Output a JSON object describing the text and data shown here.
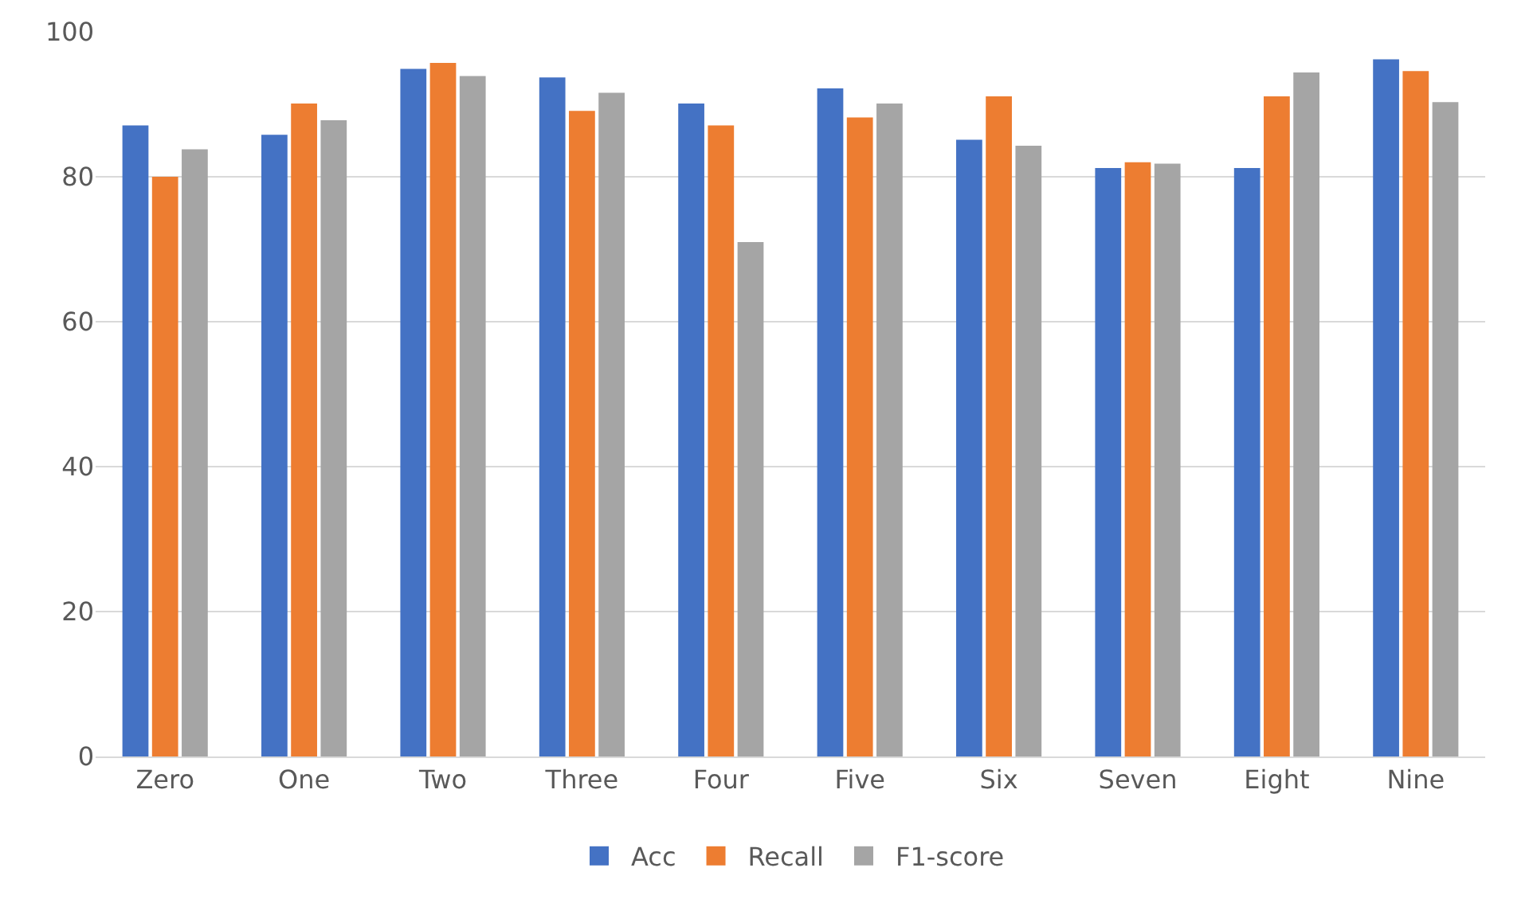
{
  "chart_data": {
    "type": "bar",
    "categories": [
      "Zero",
      "One",
      "Two",
      "Three",
      "Four",
      "Five",
      "Six",
      "Seven",
      "Eight",
      "Nine"
    ],
    "series": [
      {
        "name": "Acc",
        "color": "#4472c4",
        "values": [
          87.1,
          85.8,
          94.9,
          93.7,
          90.1,
          92.2,
          85.1,
          81.2,
          81.2,
          96.2
        ]
      },
      {
        "name": "Recall",
        "color": "#ed7d31",
        "values": [
          80.0,
          90.1,
          95.7,
          89.1,
          87.1,
          88.2,
          91.1,
          82.0,
          91.1,
          94.6
        ]
      },
      {
        "name": "F1-score",
        "color": "#a5a5a5",
        "values": [
          83.8,
          87.8,
          93.9,
          91.6,
          71.0,
          90.1,
          84.3,
          81.8,
          94.4,
          90.3
        ]
      }
    ],
    "ylim": [
      0,
      100
    ],
    "yticks": [
      0,
      20,
      40,
      60,
      80,
      100
    ],
    "grid": "y",
    "legend": "bottom"
  }
}
